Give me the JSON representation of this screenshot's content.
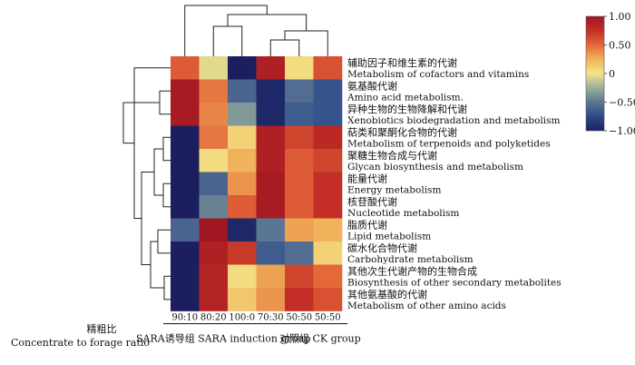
{
  "chart_data": {
    "type": "heatmap",
    "xlabel_zh": "精粗比",
    "xlabel_en": "Concentrate to forage ratio",
    "columns": [
      "90:10",
      "80:20",
      "100:0",
      "70:30",
      "50:50",
      "50:50"
    ],
    "groups": [
      {
        "label": "SARA诱导组  SARA induction group",
        "columns": [
          0,
          1,
          2,
          3
        ]
      },
      {
        "label": "对照组 CK group",
        "columns": [
          4,
          5
        ]
      }
    ],
    "rows": [
      {
        "zh": "辅助因子和维生素的代谢",
        "en": "Metabolism of cofactors and vitamins",
        "values": [
          0.55,
          -0.05,
          -1.0,
          0.9,
          0.05,
          0.6
        ]
      },
      {
        "zh": "氨基酸代谢",
        "en": "Amino acid metabolism.",
        "values": [
          0.95,
          0.45,
          -0.6,
          -0.95,
          -0.55,
          -0.7
        ]
      },
      {
        "zh": "异种生物的生物降解和代谢",
        "en": "Xenobiotics biodegradation and metabolism",
        "values": [
          0.95,
          0.4,
          -0.35,
          -0.95,
          -0.65,
          -0.7
        ]
      },
      {
        "zh": "萜类和聚酮化合物的代谢",
        "en": "Metabolism of terpenoids and polyketides",
        "values": [
          -1.0,
          0.45,
          0.1,
          0.9,
          0.65,
          0.8
        ]
      },
      {
        "zh": "聚糖生物合成与代谢",
        "en": "Glycan biosynthesis and metabolism",
        "values": [
          -1.0,
          0.05,
          0.25,
          0.9,
          0.55,
          0.65
        ]
      },
      {
        "zh": "能量代谢",
        "en": "Energy metabolism",
        "values": [
          -1.0,
          -0.6,
          0.35,
          0.95,
          0.55,
          0.75
        ]
      },
      {
        "zh": "核苷酸代谢",
        "en": "Nucleotide metabolism",
        "values": [
          -1.0,
          -0.45,
          0.55,
          0.95,
          0.55,
          0.75
        ]
      },
      {
        "zh": "脂质代谢",
        "en": "Lipid metabolism",
        "values": [
          -0.6,
          1.0,
          -0.95,
          -0.5,
          0.3,
          0.25
        ]
      },
      {
        "zh": "碳水化合物代谢",
        "en": "Carbohydrate metabolism",
        "values": [
          -1.0,
          0.9,
          0.7,
          -0.65,
          -0.55,
          0.1
        ]
      },
      {
        "zh": "其他次生代谢产物的生物合成",
        "en": "Biosynthesis of other secondary metabolites",
        "values": [
          -1.0,
          0.85,
          0.05,
          0.3,
          0.65,
          0.5
        ]
      },
      {
        "zh": "其他氨基酸的代谢",
        "en": "Metabolism of other amino acids",
        "values": [
          -1.0,
          0.85,
          0.15,
          0.35,
          0.75,
          0.6
        ]
      }
    ],
    "colorbar": {
      "min": -1.0,
      "max": 1.0,
      "ticks": [
        1.0,
        0.5,
        0,
        -0.5,
        -1.0
      ],
      "tick_labels": [
        "1.00",
        "0.50",
        "0",
        "−0.50",
        "−1.00"
      ]
    },
    "palette": {
      "high": "#a01622",
      "mid": "#f3e58a",
      "low": "#1b1f5f"
    }
  }
}
